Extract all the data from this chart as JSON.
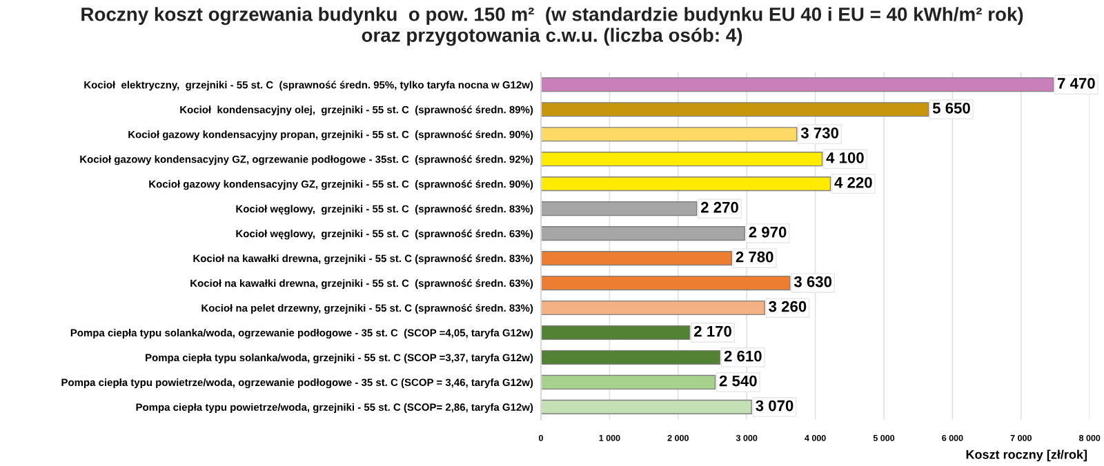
{
  "chart_data": {
    "type": "bar",
    "orientation": "horizontal",
    "title": "Roczny koszt ogrzewania budynku  o pow. 150 m²  (w standardzie budynku EU 40 i EU = 40 kWh/m² rok)\noraz przygotowania c.w.u. (liczba osób: 4)",
    "xlabel": "Koszt roczny [zł/rok]",
    "categories": [
      "Kocioł  elektryczny,  grzejniki - 55 st. C  (sprawność średn. 95%, tylko taryfa nocna w G12w)",
      "Kocioł  kondensacyjny olej,  grzejniki - 55 st. C  (sprawność średn. 89%)",
      "Kocioł gazowy kondensacyjny propan, grzejniki - 55 st. C  (sprawność średn. 90%)",
      "Kocioł gazowy kondensacyjny GZ, ogrzewanie podłogowe - 35st. C  (sprawność średn. 92%)",
      "Kocioł gazowy kondensacyjny GZ, grzejniki - 55 st. C  (sprawność średn. 90%)",
      "Kocioł węglowy,  grzejniki - 55 st. C  (sprawność średn. 83%)",
      "Kocioł węglowy,  grzejniki - 55 st. C  (sprawność średn. 63%)",
      "Kocioł na kawałki drewna, grzejniki - 55 st. C (sprawność średn. 83%)",
      "Kocioł na kawałki drewna, grzejniki - 55 st. C  (sprawność średn. 63%)",
      "Kocioł na pelet drzewny, grzejniki - 55 st. C (sprawność średn. 83%)",
      "Pompa ciepła typu solanka/woda, ogrzewanie podłogowe - 35 st. C  (SCOP =4,05, taryfa G12w)",
      "Pompa ciepła typu solanka/woda, grzejniki - 55 st. C (SCOP =3,37, taryfa G12w)",
      "Pompa ciepła typu powietrze/woda, ogrzewanie podłogowe - 35 st. C (SCOP = 3,46, taryfa G12w)",
      "Pompa ciepła typu powietrze/woda, grzejniki - 55 st. C (SCOP= 2,86, taryfa G12w)"
    ],
    "values": [
      7470,
      5650,
      3730,
      4100,
      4220,
      2270,
      2970,
      2780,
      3630,
      3260,
      2170,
      2610,
      2540,
      3070
    ],
    "value_labels": [
      "7 470",
      "5 650",
      "3 730",
      "4 100",
      "4 220",
      "2 270",
      "2 970",
      "2 780",
      "3 630",
      "3 260",
      "2 170",
      "2 610",
      "2 540",
      "3 070"
    ],
    "colors": [
      "#c97fb9",
      "#c8960c",
      "#ffd966",
      "#ffeb00",
      "#ffeb00",
      "#a6a6a6",
      "#a6a6a6",
      "#ed7d31",
      "#ed7d31",
      "#f4b183",
      "#548235",
      "#548235",
      "#a9d18e",
      "#c5e0b4"
    ],
    "xlim": [
      0,
      8000
    ],
    "xticks": [
      0,
      {
        "value": 1000,
        "label": "1 000"
      },
      {
        "value": 2000,
        "label": "2 000"
      },
      {
        "value": 3000,
        "label": "3 000"
      },
      {
        "value": 4000,
        "label": "4 000"
      },
      {
        "value": 5000,
        "label": "5 000"
      },
      {
        "value": 6000,
        "label": "6 000"
      },
      {
        "value": 7000,
        "label": "7 000"
      },
      {
        "value": 8000,
        "label": "8 000"
      }
    ],
    "grid": "x"
  }
}
